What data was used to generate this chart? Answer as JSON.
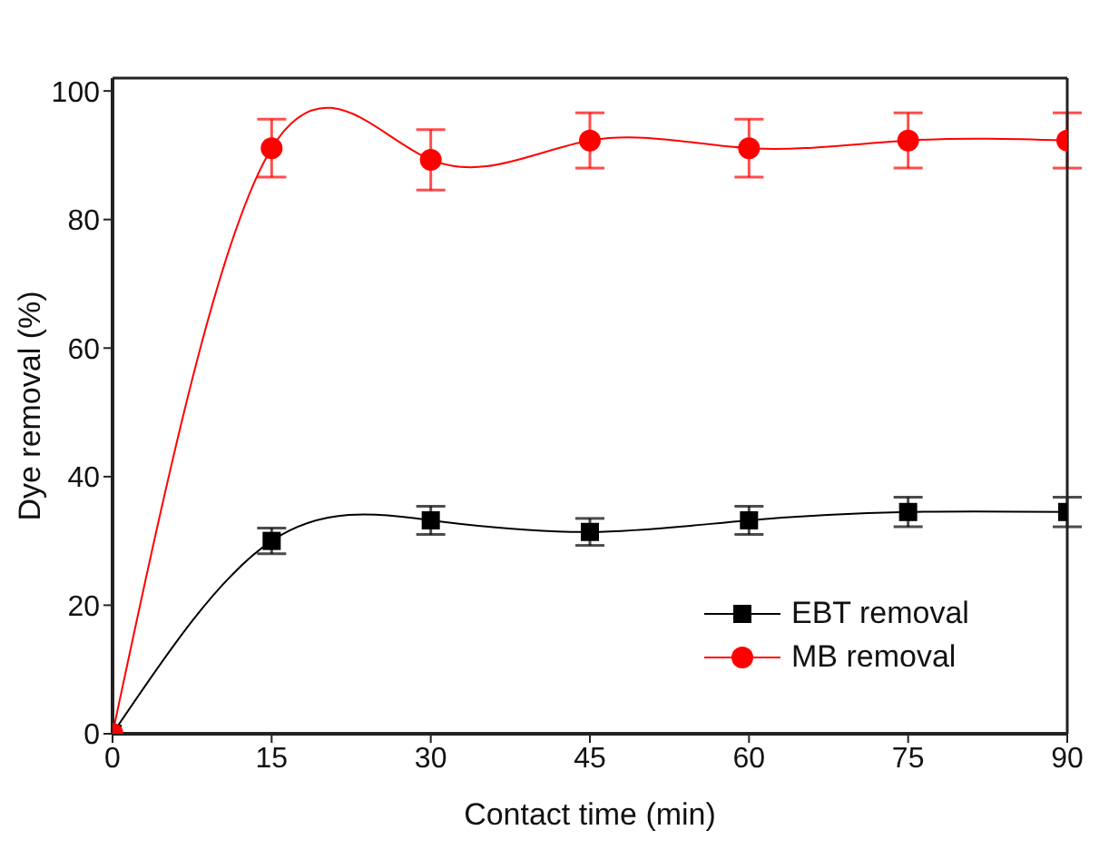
{
  "chart_data": {
    "type": "line",
    "xlabel": "Contact time (min)",
    "ylabel": "Dye removal (%)",
    "x": [
      0,
      15,
      30,
      45,
      60,
      75,
      90
    ],
    "series": [
      {
        "name": "EBT removal",
        "color": "#000000",
        "marker": "square",
        "values": [
          0,
          30.0,
          33.2,
          31.4,
          33.2,
          34.5,
          34.5
        ],
        "errors": [
          null,
          2.0,
          2.2,
          2.1,
          2.2,
          2.3,
          2.3
        ]
      },
      {
        "name": "MB removal",
        "color": "#ff0000",
        "marker": "circle",
        "values": [
          0,
          91.1,
          89.3,
          92.3,
          91.1,
          92.3,
          92.3
        ],
        "errors": [
          null,
          4.5,
          4.7,
          4.3,
          4.5,
          4.3,
          4.3
        ]
      }
    ],
    "xlim": [
      0,
      90
    ],
    "xticks": [
      0,
      15,
      30,
      45,
      60,
      75,
      90
    ],
    "ylim": [
      0,
      102
    ],
    "yticks": [
      0,
      20,
      40,
      60,
      80,
      100
    ],
    "grid": false,
    "legend": "bottom right",
    "line_style": "solid"
  }
}
